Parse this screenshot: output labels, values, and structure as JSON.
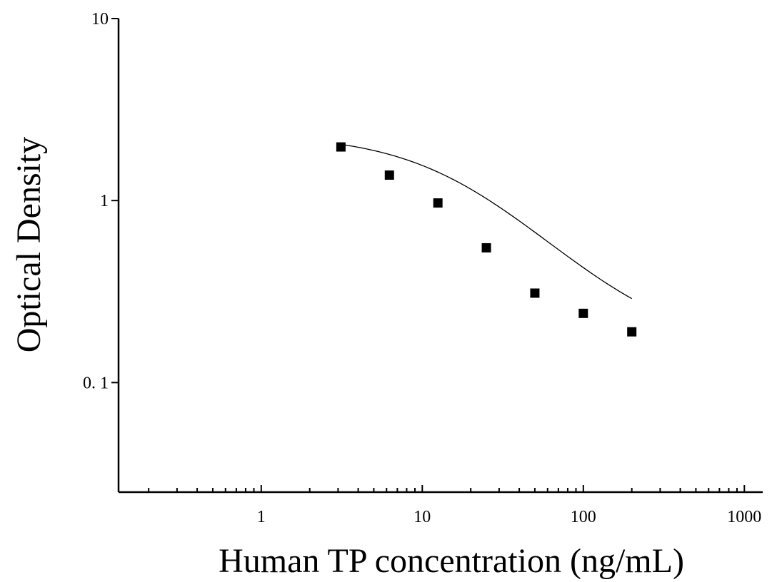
{
  "chart_data": {
    "type": "scatter",
    "title": "",
    "xlabel": "Human TP concentration (ng/mL)",
    "ylabel": "Optical Density",
    "x_scale": "log",
    "y_scale": "log",
    "xlim": [
      0.13,
      1300
    ],
    "ylim": [
      0.025,
      10
    ],
    "x_ticks": [
      {
        "value": 1,
        "label": "1"
      },
      {
        "value": 10,
        "label": "10"
      },
      {
        "value": 100,
        "label": "100"
      },
      {
        "value": 1000,
        "label": "1000"
      }
    ],
    "y_ticks": [
      {
        "value": 0.1,
        "label": "0. 1"
      },
      {
        "value": 1,
        "label": "1"
      },
      {
        "value": 10,
        "label": "10"
      }
    ],
    "grid": false,
    "legend": "none",
    "marker_color": "#000000",
    "curve_color": "#000000",
    "series": [
      {
        "marker": "square",
        "x": [
          3.125,
          6.25,
          12.5,
          25,
          50,
          100,
          200
        ],
        "y": [
          1.97,
          1.38,
          0.97,
          0.55,
          0.31,
          0.24,
          0.19
        ]
      }
    ],
    "fit_curve": {
      "type": "4PL",
      "a": 2.32,
      "d": 0.15,
      "c": 17.5,
      "b": 1.1,
      "x_range": [
        3.125,
        200
      ]
    }
  }
}
